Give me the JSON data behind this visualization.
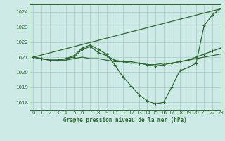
{
  "bg_color": "#ceeae7",
  "grid_color": "#aacfcc",
  "line_color": "#2d6a2d",
  "title": "Graphe pression niveau de la mer (hPa)",
  "xlim": [
    -0.5,
    23
  ],
  "ylim": [
    1017.5,
    1024.5
  ],
  "yticks": [
    1018,
    1019,
    1020,
    1021,
    1022,
    1023,
    1024
  ],
  "xticks": [
    0,
    1,
    2,
    3,
    4,
    5,
    6,
    7,
    8,
    9,
    10,
    11,
    12,
    13,
    14,
    15,
    16,
    17,
    18,
    19,
    20,
    21,
    22,
    23
  ],
  "series": [
    {
      "x": [
        0,
        1,
        2,
        3,
        4,
        5,
        6,
        7,
        8,
        9,
        10,
        11,
        12,
        13,
        14,
        15,
        16,
        17,
        18,
        19,
        20,
        21,
        22,
        23
      ],
      "y": [
        1021.0,
        1020.9,
        1020.8,
        1020.8,
        1020.8,
        1020.9,
        1021.0,
        1020.9,
        1020.9,
        1020.8,
        1020.7,
        1020.7,
        1020.6,
        1020.6,
        1020.5,
        1020.5,
        1020.6,
        1020.6,
        1020.7,
        1020.8,
        1020.9,
        1021.0,
        1021.1,
        1021.2
      ],
      "marker": false,
      "lw": 0.9
    },
    {
      "x": [
        0,
        23
      ],
      "y": [
        1021.0,
        1024.2
      ],
      "marker": false,
      "lw": 0.9
    },
    {
      "x": [
        0,
        1,
        2,
        3,
        4,
        5,
        6,
        7,
        8,
        9,
        10,
        11,
        12,
        13,
        14,
        15,
        16,
        17,
        18,
        19,
        20,
        21,
        22,
        23
      ],
      "y": [
        1021.0,
        1020.9,
        1020.8,
        1020.8,
        1020.9,
        1021.1,
        1021.6,
        1021.8,
        1021.5,
        1021.2,
        1020.5,
        1019.7,
        1019.1,
        1018.5,
        1018.1,
        1017.9,
        1018.0,
        1019.0,
        1020.1,
        1020.3,
        1020.6,
        1023.1,
        1023.8,
        1024.2
      ],
      "marker": true,
      "lw": 0.9
    },
    {
      "x": [
        0,
        1,
        2,
        3,
        4,
        5,
        6,
        7,
        8,
        9,
        10,
        11,
        12,
        13,
        14,
        15,
        16,
        17,
        18,
        19,
        20,
        21,
        22,
        23
      ],
      "y": [
        1021.0,
        1020.9,
        1020.8,
        1020.8,
        1020.9,
        1021.0,
        1021.5,
        1021.7,
        1021.3,
        1021.1,
        1020.8,
        1020.7,
        1020.7,
        1020.6,
        1020.5,
        1020.4,
        1020.5,
        1020.6,
        1020.7,
        1020.8,
        1021.0,
        1021.2,
        1021.4,
        1021.6
      ],
      "marker": true,
      "lw": 0.9
    }
  ],
  "figsize": [
    3.2,
    2.0
  ],
  "dpi": 100
}
